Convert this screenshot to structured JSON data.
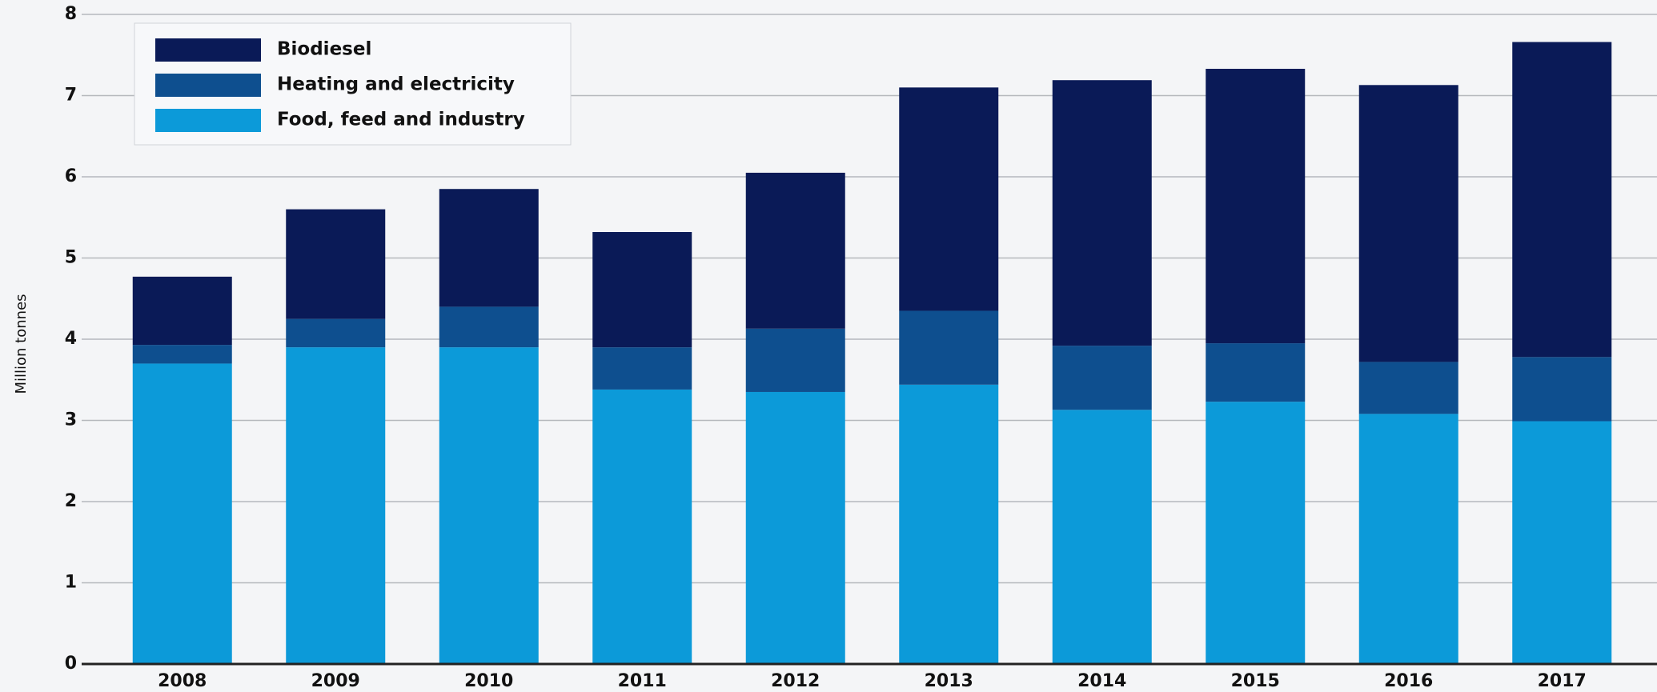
{
  "chart_data": {
    "type": "stacked-bar",
    "y_label": "Million tonnes",
    "categories": [
      "2008",
      "2009",
      "2010",
      "2011",
      "2012",
      "2013",
      "2014",
      "2015",
      "2016",
      "2017"
    ],
    "series": [
      {
        "name": "Biodiesel",
        "color": "#0a1a57",
        "values": [
          0.84,
          1.35,
          1.45,
          1.42,
          1.92,
          2.75,
          3.27,
          3.38,
          3.41,
          3.88
        ]
      },
      {
        "name": "Heating and electricity",
        "color": "#0e4f8f",
        "values": [
          0.23,
          0.35,
          0.5,
          0.52,
          0.78,
          0.91,
          0.79,
          0.72,
          0.64,
          0.79
        ]
      },
      {
        "name": "Food, feed and industry",
        "color": "#0c9ad9",
        "values": [
          3.7,
          3.9,
          3.9,
          3.38,
          3.35,
          3.44,
          3.13,
          3.23,
          3.08,
          2.99
        ]
      }
    ],
    "ylim": [
      0,
      8
    ],
    "yticks": [
      0,
      1,
      2,
      3,
      4,
      5,
      6,
      7,
      8
    ],
    "grid": true,
    "legend": "upper-left"
  }
}
